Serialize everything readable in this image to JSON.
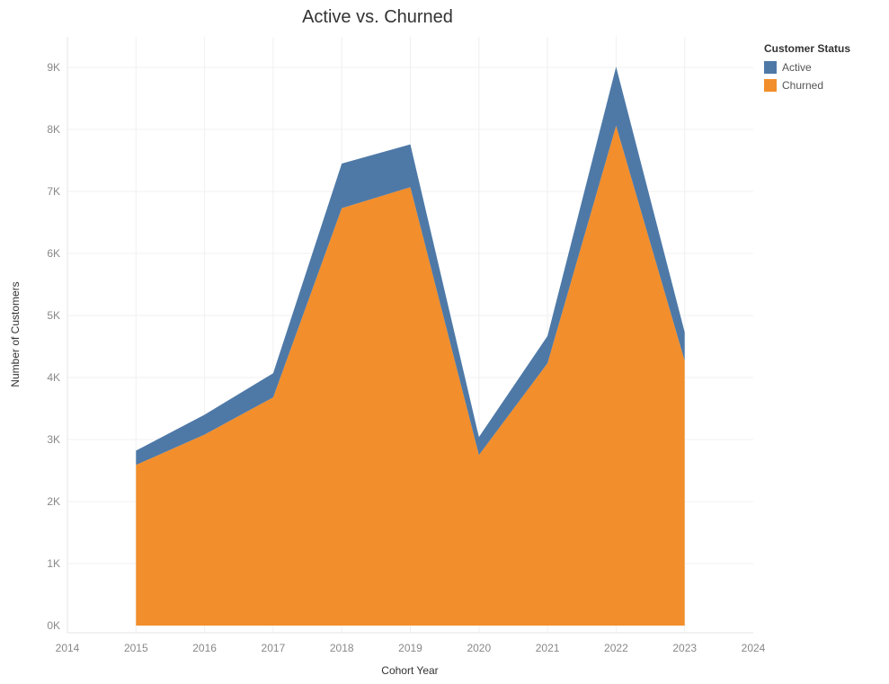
{
  "chart_data": {
    "type": "area",
    "stacked": true,
    "title": "Active vs. Churned",
    "xlabel": "Cohort Year",
    "ylabel": "Number of Customers",
    "x": [
      2015,
      2016,
      2017,
      2018,
      2019,
      2020,
      2021,
      2022,
      2023
    ],
    "xlim": [
      2014,
      2024
    ],
    "x_ticks": [
      "2014",
      "2015",
      "2016",
      "2017",
      "2018",
      "2019",
      "2020",
      "2021",
      "2022",
      "2023",
      "2024"
    ],
    "ylim": [
      0,
      9000
    ],
    "y_ticks": [
      "0K",
      "1K",
      "2K",
      "3K",
      "4K",
      "5K",
      "6K",
      "7K",
      "8K",
      "9K"
    ],
    "grid": true,
    "legend_title": "Customer Status",
    "legend_position": "top-right",
    "series": [
      {
        "name": "Churned",
        "color": "#f28e2b",
        "values": [
          2590,
          3080,
          3680,
          6730,
          7070,
          2750,
          4230,
          8060,
          4270
        ]
      },
      {
        "name": "Active",
        "color": "#4e79a7",
        "values": [
          230,
          320,
          390,
          720,
          690,
          290,
          440,
          950,
          460
        ]
      }
    ],
    "legend": [
      {
        "name": "Active",
        "color": "#4e79a7"
      },
      {
        "name": "Churned",
        "color": "#f28e2b"
      }
    ]
  }
}
